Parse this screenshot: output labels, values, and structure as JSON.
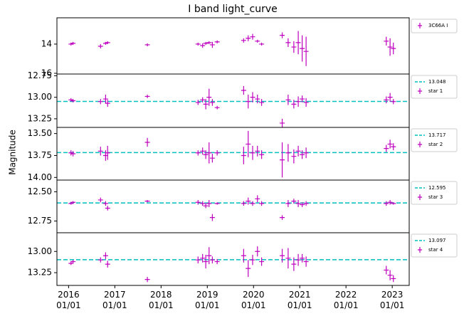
{
  "title": "I band light_curve",
  "ylabel": "Magnitude",
  "chart_data": [
    {
      "type": "errorbar",
      "y_inverted": true,
      "legend": "outside upper right",
      "xlim": [
        "2015-10-01",
        "2023-05-15"
      ],
      "x": [
        "2016-01-20",
        "2016-02-05",
        "2016-09-10",
        "2016-10-20",
        "2016-11-05",
        "2017-09-15",
        "2018-10-20",
        "2018-11-25",
        "2018-12-20",
        "2019-01-15",
        "2019-02-10",
        "2019-03-20",
        "2019-10-15",
        "2019-11-20",
        "2019-12-25",
        "2020-02-01",
        "2020-03-05",
        "2020-08-15",
        "2020-10-01",
        "2020-11-15",
        "2020-12-20",
        "2021-01-20",
        "2021-02-20",
        "2022-11-15",
        "2022-12-15",
        "2023-01-10"
      ],
      "series": [
        {
          "name": "3C66A I",
          "color": "#bf00bf",
          "values": [
            14.0,
            13.95,
            14.15,
            13.95,
            13.9,
            14.05,
            14.0,
            14.1,
            13.95,
            13.9,
            14.05,
            13.85,
            13.75,
            13.6,
            13.5,
            13.8,
            14.0,
            13.4,
            13.9,
            14.2,
            13.9,
            14.3,
            14.5,
            13.8,
            14.2,
            14.3
          ],
          "errors": [
            0.1,
            0.1,
            0.15,
            0.1,
            0.1,
            0.1,
            0.1,
            0.15,
            0.1,
            0.1,
            0.2,
            0.1,
            0.15,
            0.2,
            0.2,
            0.1,
            0.1,
            0.2,
            0.3,
            0.4,
            0.8,
            0.9,
            1.0,
            0.3,
            0.6,
            0.4
          ]
        }
      ],
      "ylim": [
        12.2,
        16.05
      ],
      "yticks": [
        14,
        16
      ]
    },
    {
      "type": "errorbar",
      "y_inverted": true,
      "legend": "outside upper right",
      "xlim": [
        "2015-10-01",
        "2023-05-15"
      ],
      "x": [
        "2016-01-20",
        "2016-02-05",
        "2016-09-10",
        "2016-10-20",
        "2016-11-05",
        "2017-09-15",
        "2018-10-20",
        "2018-11-25",
        "2018-12-20",
        "2019-01-15",
        "2019-02-10",
        "2019-03-20",
        "2019-10-15",
        "2019-11-20",
        "2019-12-25",
        "2020-02-01",
        "2020-03-05",
        "2020-08-15",
        "2020-10-01",
        "2020-11-15",
        "2020-12-20",
        "2021-01-20",
        "2021-02-20",
        "2022-11-15",
        "2022-12-15",
        "2023-01-10"
      ],
      "series": [
        {
          "name": "star 1",
          "color": "#bf00bf",
          "values": [
            13.03,
            13.04,
            13.05,
            13.02,
            13.07,
            12.99,
            13.06,
            13.03,
            13.08,
            13.0,
            13.06,
            13.12,
            12.92,
            13.05,
            13.0,
            13.02,
            13.06,
            13.3,
            13.03,
            13.08,
            13.05,
            13.02,
            13.06,
            13.03,
            13.0,
            13.05
          ],
          "errors": [
            0.02,
            0.02,
            0.03,
            0.05,
            0.04,
            0.02,
            0.03,
            0.03,
            0.06,
            0.1,
            0.04,
            0.02,
            0.05,
            0.08,
            0.06,
            0.05,
            0.04,
            0.05,
            0.06,
            0.05,
            0.06,
            0.04,
            0.05,
            0.04,
            0.05,
            0.03
          ]
        }
      ],
      "hline": {
        "value": 13.048,
        "color": "#00bfbf"
      },
      "ylim": [
        12.73,
        13.35
      ],
      "yticks": [
        {
          "value": 12.75,
          "label": "12.75"
        },
        {
          "value": 13.0,
          "label": "13.00"
        },
        {
          "value": 13.25,
          "label": "13.25"
        }
      ]
    },
    {
      "type": "errorbar",
      "y_inverted": true,
      "legend": "outside upper right",
      "xlim": [
        "2015-10-01",
        "2023-05-15"
      ],
      "x": [
        "2016-01-20",
        "2016-02-05",
        "2016-09-10",
        "2016-10-20",
        "2016-11-05",
        "2017-09-15",
        "2018-10-20",
        "2018-11-25",
        "2018-12-20",
        "2019-01-15",
        "2019-02-10",
        "2019-03-20",
        "2019-10-15",
        "2019-11-20",
        "2019-12-25",
        "2020-02-01",
        "2020-03-05",
        "2020-08-15",
        "2020-10-01",
        "2020-11-15",
        "2020-12-20",
        "2021-01-20",
        "2021-02-20",
        "2022-11-15",
        "2022-12-15",
        "2023-01-10"
      ],
      "series": [
        {
          "name": "star 2",
          "color": "#bf00bf",
          "values": [
            13.72,
            13.73,
            13.7,
            13.75,
            13.72,
            13.6,
            13.72,
            13.7,
            13.74,
            13.72,
            13.78,
            13.72,
            13.75,
            13.62,
            13.72,
            13.7,
            13.74,
            13.8,
            13.72,
            13.76,
            13.7,
            13.74,
            13.72,
            13.67,
            13.62,
            13.65
          ],
          "errors": [
            0.03,
            0.03,
            0.05,
            0.06,
            0.08,
            0.05,
            0.03,
            0.04,
            0.05,
            0.12,
            0.05,
            0.03,
            0.1,
            0.15,
            0.08,
            0.06,
            0.05,
            0.2,
            0.1,
            0.08,
            0.06,
            0.05,
            0.06,
            0.04,
            0.05,
            0.04
          ]
        }
      ],
      "hline": {
        "value": 13.717,
        "color": "#00bfbf"
      },
      "ylim": [
        13.43,
        14.03
      ],
      "yticks": [
        {
          "value": 13.5,
          "label": "13.50"
        },
        {
          "value": 13.75,
          "label": "13.75"
        },
        {
          "value": 14.0,
          "label": "14.00"
        }
      ]
    },
    {
      "type": "errorbar",
      "y_inverted": true,
      "legend": "outside upper right",
      "xlim": [
        "2015-10-01",
        "2023-05-15"
      ],
      "x": [
        "2016-01-20",
        "2016-02-05",
        "2016-09-10",
        "2016-10-20",
        "2016-11-05",
        "2017-09-15",
        "2018-10-20",
        "2018-11-25",
        "2018-12-20",
        "2019-01-15",
        "2019-02-10",
        "2019-03-20",
        "2019-10-15",
        "2019-11-20",
        "2019-12-25",
        "2020-02-01",
        "2020-03-05",
        "2020-08-15",
        "2020-10-01",
        "2020-11-15",
        "2020-12-20",
        "2021-01-20",
        "2021-02-20",
        "2022-11-15",
        "2022-12-15",
        "2023-01-10"
      ],
      "series": [
        {
          "name": "star 3",
          "color": "#bf00bf",
          "values": [
            12.6,
            12.59,
            12.57,
            12.6,
            12.64,
            12.58,
            12.59,
            12.6,
            12.62,
            12.6,
            12.72,
            12.6,
            12.6,
            12.58,
            12.6,
            12.56,
            12.6,
            12.72,
            12.6,
            12.58,
            12.6,
            12.61,
            12.6,
            12.6,
            12.59,
            12.6
          ],
          "errors": [
            0.01,
            0.01,
            0.02,
            0.02,
            0.02,
            0.01,
            0.02,
            0.02,
            0.02,
            0.03,
            0.03,
            0.01,
            0.02,
            0.03,
            0.02,
            0.03,
            0.02,
            0.02,
            0.03,
            0.02,
            0.03,
            0.02,
            0.02,
            0.02,
            0.02,
            0.01
          ]
        }
      ],
      "hline": {
        "value": 12.595,
        "color": "#00bfbf"
      },
      "ylim": [
        12.4,
        12.85
      ],
      "yticks": [
        {
          "value": 12.5,
          "label": "12.50"
        },
        {
          "value": 12.75,
          "label": "12.75"
        }
      ]
    },
    {
      "type": "errorbar",
      "y_inverted": true,
      "legend": "outside upper right",
      "xlim": [
        "2015-10-01",
        "2023-05-15"
      ],
      "x": [
        "2016-01-20",
        "2016-02-05",
        "2016-09-10",
        "2016-10-20",
        "2016-11-05",
        "2017-09-15",
        "2018-10-20",
        "2018-11-25",
        "2018-12-20",
        "2019-01-15",
        "2019-02-10",
        "2019-03-20",
        "2019-10-15",
        "2019-11-20",
        "2019-12-25",
        "2020-02-01",
        "2020-03-05",
        "2020-08-15",
        "2020-10-01",
        "2020-11-15",
        "2020-12-20",
        "2021-01-20",
        "2021-02-20",
        "2022-11-15",
        "2022-12-15",
        "2023-01-10"
      ],
      "series": [
        {
          "name": "star 4",
          "color": "#bf00bf",
          "values": [
            13.14,
            13.12,
            13.1,
            13.05,
            13.15,
            13.33,
            13.1,
            13.08,
            13.12,
            13.05,
            13.1,
            13.12,
            13.05,
            13.2,
            13.1,
            13.0,
            13.12,
            13.05,
            13.08,
            13.15,
            13.1,
            13.08,
            13.12,
            13.22,
            13.28,
            13.32
          ],
          "errors": [
            0.02,
            0.02,
            0.03,
            0.04,
            0.04,
            0.03,
            0.04,
            0.05,
            0.08,
            0.1,
            0.04,
            0.03,
            0.08,
            0.1,
            0.06,
            0.06,
            0.05,
            0.08,
            0.12,
            0.08,
            0.07,
            0.05,
            0.06,
            0.05,
            0.06,
            0.04
          ]
        }
      ],
      "hline": {
        "value": 13.097,
        "color": "#00bfbf"
      },
      "ylim": [
        12.78,
        13.4
      ],
      "yticks": [
        {
          "value": 13.0,
          "label": "13.00"
        },
        {
          "value": 13.25,
          "label": "13.25"
        }
      ],
      "xticks": [
        {
          "value": "2016-01-01",
          "label": "2016\n01/01"
        },
        {
          "value": "2017-01-01",
          "label": "2017\n01/01"
        },
        {
          "value": "2018-01-01",
          "label": "2018\n01/01"
        },
        {
          "value": "2019-01-01",
          "label": "2019\n01/01"
        },
        {
          "value": "2020-01-01",
          "label": "2020\n01/01"
        },
        {
          "value": "2021-01-01",
          "label": "2021\n01/01"
        },
        {
          "value": "2022-01-01",
          "label": "2022\n01/01"
        },
        {
          "value": "2023-01-01",
          "label": "2023\n01/01"
        }
      ]
    }
  ]
}
